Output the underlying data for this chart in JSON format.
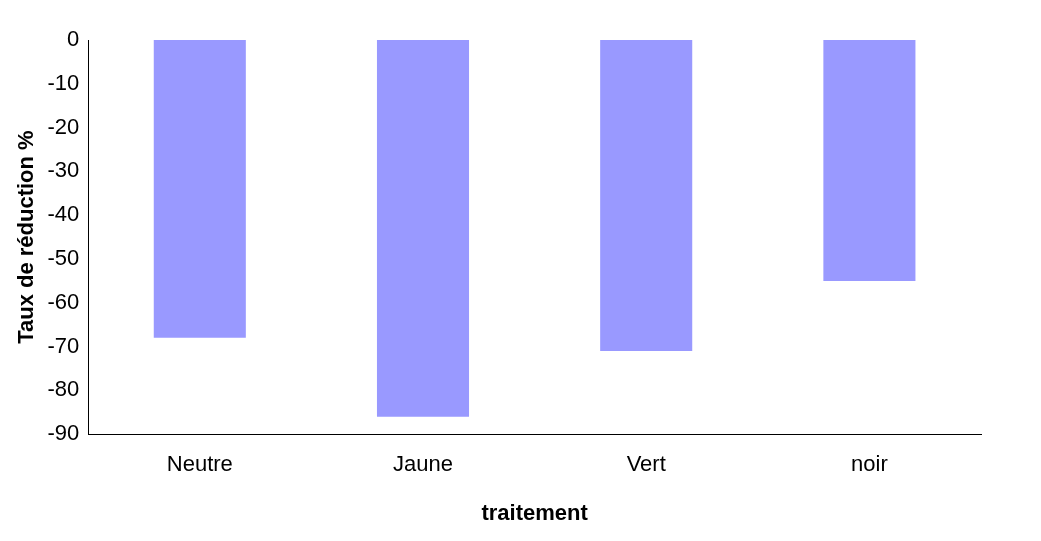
{
  "chart_data": {
    "type": "bar",
    "xlabel": "traitement",
    "ylabel": "Taux de réduction %",
    "categories": [
      "Neutre",
      "Jaune",
      "Vert",
      "noir"
    ],
    "values": [
      -68,
      -86,
      -71,
      -55
    ],
    "color": "#9999ff",
    "ylim": [
      -90,
      0
    ],
    "yticks": [
      -90,
      -80,
      -70,
      -60,
      -50,
      -40,
      -30,
      -20,
      -10,
      0
    ],
    "grid": false,
    "legend": false
  }
}
